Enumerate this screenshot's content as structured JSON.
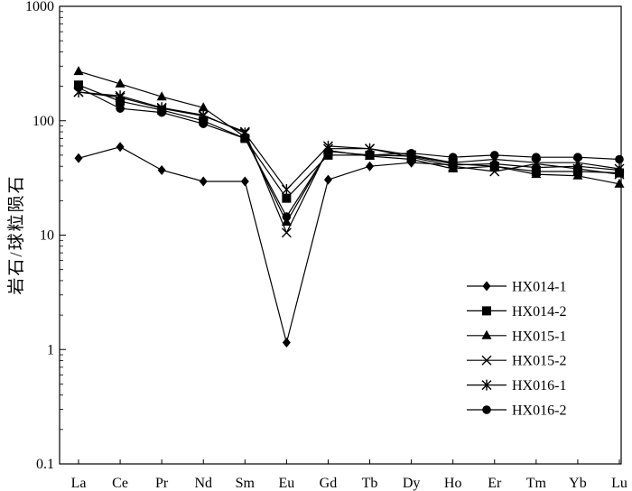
{
  "chart_data": {
    "type": "line",
    "title": "",
    "xlabel": "",
    "ylabel": "岩石/球粒陨石",
    "yscale": "log",
    "ylim": [
      0.1,
      1000
    ],
    "yticks": [
      "0.1",
      "1",
      "10",
      "100",
      "1000"
    ],
    "legend_position": "bottom-right",
    "grid": false,
    "categories": [
      "La",
      "Ce",
      "Pr",
      "Nd",
      "Sm",
      "Eu",
      "Gd",
      "Tb",
      "Dy",
      "Ho",
      "Er",
      "Tm",
      "Yb",
      "Lu"
    ],
    "series": [
      {
        "name": "HX014-1",
        "marker": "diamond",
        "values": [
          47,
          59,
          37,
          29.5,
          29.5,
          1.15,
          30.5,
          40,
          43,
          41,
          42,
          39,
          40,
          37
        ]
      },
      {
        "name": "HX014-2",
        "marker": "square",
        "values": [
          205,
          148,
          124,
          100,
          70,
          21,
          50,
          50,
          49,
          42,
          40,
          36,
          36,
          35
        ]
      },
      {
        "name": "HX015-1",
        "marker": "triangle",
        "values": [
          270,
          210,
          162,
          130,
          72,
          13,
          55,
          49,
          46,
          38,
          40,
          34,
          33,
          28
        ]
      },
      {
        "name": "HX015-2",
        "marker": "x",
        "values": [
          178,
          160,
          128,
          110,
          80,
          10.5,
          57,
          57,
          48,
          40,
          36,
          42,
          38,
          34
        ]
      },
      {
        "name": "HX016-1",
        "marker": "asterisk",
        "values": [
          178,
          165,
          130,
          112,
          78,
          25,
          60,
          57,
          50,
          43,
          46,
          43,
          43,
          38
        ]
      },
      {
        "name": "HX016-2",
        "marker": "circle",
        "values": [
          195,
          128,
          118,
          94,
          70,
          14.5,
          54,
          50,
          52,
          48,
          50,
          48,
          48,
          46
        ]
      }
    ]
  }
}
